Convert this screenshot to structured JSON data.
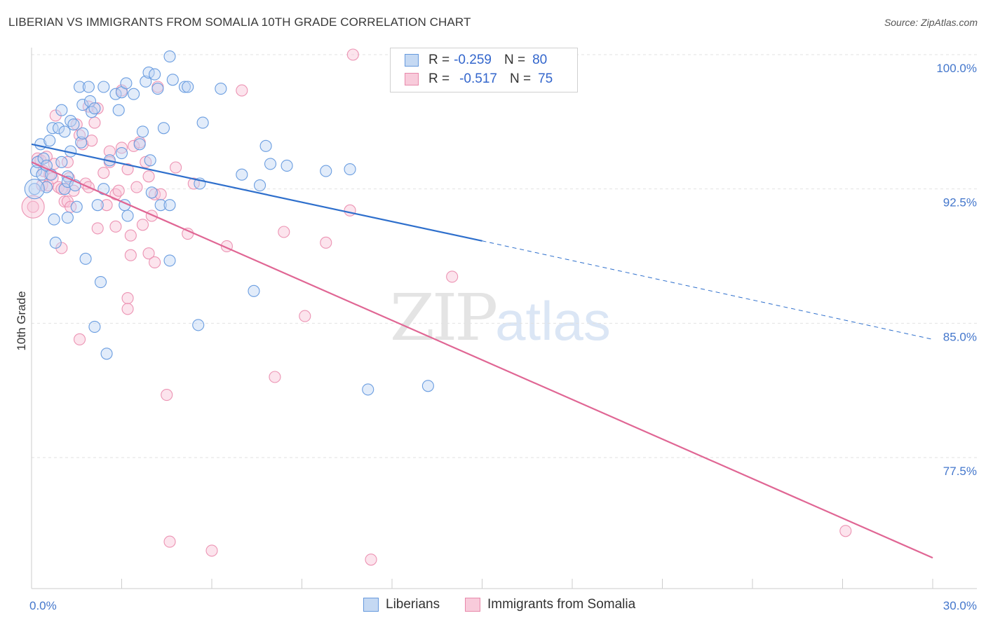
{
  "header": {
    "title": "LIBERIAN VS IMMIGRANTS FROM SOMALIA 10TH GRADE CORRELATION CHART",
    "source": "Source: ZipAtlas.com"
  },
  "watermark": {
    "zip": "ZIP",
    "atlas": "atlas"
  },
  "legend": {
    "rows": [
      {
        "r_label": "R =",
        "r_value": "-0.259",
        "n_label": "N =",
        "n_value": "80",
        "color": "#6699dd",
        "fill": "#c5d9f3"
      },
      {
        "r_label": "R =",
        "r_value": "-0.517",
        "n_label": "N =",
        "n_value": "75",
        "color": "#e889ab",
        "fill": "#f8cbdb"
      }
    ]
  },
  "bottom_legend": {
    "series1": "Liberians",
    "series2": "Immigrants from Somalia"
  },
  "colors": {
    "blue": "#6a9de0",
    "blue_line": "#2e6fcc",
    "pink": "#ec93b3",
    "pink_line": "#e06694",
    "tick": "#4477cc"
  },
  "chart_data": {
    "type": "scatter",
    "title": "LIBERIAN VS IMMIGRANTS FROM SOMALIA 10TH GRADE CORRELATION CHART",
    "ylabel": "10th Grade",
    "xlabel": "",
    "xlim": [
      0,
      30
    ],
    "ylim": [
      71.5,
      101
    ],
    "x_ticks": [
      0,
      30
    ],
    "x_tick_labels": [
      "0.0%",
      "30.0%"
    ],
    "y_ticks": [
      100,
      92.5,
      85,
      77.5
    ],
    "y_tick_labels": [
      "100.0%",
      "92.5%",
      "85.0%",
      "77.5%"
    ],
    "grid": true,
    "legend_position": "top-center",
    "series": [
      {
        "name": "Liberians",
        "r": -0.259,
        "n": 80,
        "trend": {
          "x0": 0,
          "y0": 95.0,
          "x1": 15,
          "y1": 89.6,
          "dashed_to_x": 30,
          "dashed_to_y": 84.1
        },
        "points": [
          [
            0.1,
            92.5
          ],
          [
            0.15,
            93.5
          ],
          [
            0.2,
            94.0
          ],
          [
            0.3,
            95.0
          ],
          [
            0.35,
            93.3
          ],
          [
            0.4,
            94.2
          ],
          [
            0.5,
            93.8
          ],
          [
            0.5,
            92.6
          ],
          [
            0.6,
            95.2
          ],
          [
            0.65,
            93.3
          ],
          [
            0.7,
            95.9
          ],
          [
            0.75,
            90.8
          ],
          [
            0.8,
            89.5
          ],
          [
            0.9,
            95.9
          ],
          [
            1.0,
            96.9
          ],
          [
            1.0,
            94.0
          ],
          [
            1.1,
            92.5
          ],
          [
            1.1,
            95.7
          ],
          [
            1.2,
            90.9
          ],
          [
            1.2,
            93.2
          ],
          [
            1.2,
            92.9
          ],
          [
            1.3,
            94.6
          ],
          [
            1.3,
            96.3
          ],
          [
            1.4,
            96.1
          ],
          [
            1.45,
            92.7
          ],
          [
            1.5,
            91.5
          ],
          [
            1.6,
            98.2
          ],
          [
            1.65,
            95.1
          ],
          [
            1.7,
            95.6
          ],
          [
            1.7,
            97.2
          ],
          [
            1.8,
            88.6
          ],
          [
            1.9,
            98.2
          ],
          [
            1.95,
            97.4
          ],
          [
            2.0,
            96.8
          ],
          [
            2.1,
            97.0
          ],
          [
            2.2,
            91.6
          ],
          [
            2.3,
            87.3
          ],
          [
            2.4,
            92.5
          ],
          [
            2.4,
            98.2
          ],
          [
            2.5,
            83.3
          ],
          [
            2.1,
            84.8
          ],
          [
            2.6,
            94.1
          ],
          [
            2.8,
            97.8
          ],
          [
            2.9,
            96.9
          ],
          [
            3.0,
            97.9
          ],
          [
            3.0,
            94.5
          ],
          [
            3.1,
            91.6
          ],
          [
            3.15,
            98.4
          ],
          [
            3.2,
            91.0
          ],
          [
            3.4,
            97.8
          ],
          [
            3.6,
            95.0
          ],
          [
            3.7,
            95.7
          ],
          [
            3.8,
            98.5
          ],
          [
            3.9,
            99.0
          ],
          [
            3.95,
            94.1
          ],
          [
            4.0,
            92.3
          ],
          [
            4.1,
            98.9
          ],
          [
            4.2,
            98.1
          ],
          [
            4.3,
            91.6
          ],
          [
            4.4,
            95.9
          ],
          [
            4.6,
            99.9
          ],
          [
            4.6,
            91.6
          ],
          [
            4.7,
            98.6
          ],
          [
            4.6,
            88.5
          ],
          [
            5.1,
            98.2
          ],
          [
            5.2,
            98.2
          ],
          [
            5.6,
            92.8
          ],
          [
            5.7,
            96.2
          ],
          [
            5.55,
            84.9
          ],
          [
            6.3,
            98.1
          ],
          [
            7.0,
            93.3
          ],
          [
            7.4,
            86.8
          ],
          [
            7.6,
            92.7
          ],
          [
            7.8,
            94.9
          ],
          [
            7.95,
            93.9
          ],
          [
            8.5,
            93.8
          ],
          [
            9.8,
            93.5
          ],
          [
            10.6,
            93.6
          ],
          [
            11.2,
            81.3
          ],
          [
            13.2,
            81.5
          ]
        ]
      },
      {
        "name": "Immigrants from Somalia",
        "r": -0.517,
        "n": 75,
        "trend": {
          "x0": 0,
          "y0": 94.0,
          "x1": 30,
          "y1": 71.9
        },
        "points": [
          [
            0.05,
            91.5
          ],
          [
            0.2,
            94.2
          ],
          [
            0.3,
            94.1
          ],
          [
            0.35,
            92.7
          ],
          [
            0.4,
            93.5
          ],
          [
            0.5,
            94.3
          ],
          [
            0.55,
            92.7
          ],
          [
            0.6,
            93.3
          ],
          [
            0.7,
            93.1
          ],
          [
            0.75,
            93.9
          ],
          [
            0.8,
            96.6
          ],
          [
            0.9,
            92.6
          ],
          [
            1.0,
            89.2
          ],
          [
            1.0,
            92.5
          ],
          [
            1.1,
            91.8
          ],
          [
            1.2,
            94.0
          ],
          [
            1.2,
            91.8
          ],
          [
            1.25,
            93.1
          ],
          [
            1.3,
            91.5
          ],
          [
            1.4,
            92.4
          ],
          [
            1.5,
            96.1
          ],
          [
            1.6,
            95.5
          ],
          [
            1.6,
            84.1
          ],
          [
            1.7,
            95.0
          ],
          [
            1.8,
            92.8
          ],
          [
            1.9,
            97.1
          ],
          [
            1.9,
            92.6
          ],
          [
            2.0,
            95.2
          ],
          [
            2.1,
            96.2
          ],
          [
            2.2,
            90.3
          ],
          [
            2.2,
            97.0
          ],
          [
            2.4,
            93.4
          ],
          [
            2.5,
            91.6
          ],
          [
            2.6,
            94.6
          ],
          [
            2.6,
            94.0
          ],
          [
            2.8,
            92.2
          ],
          [
            2.8,
            90.4
          ],
          [
            2.9,
            92.4
          ],
          [
            3.0,
            94.8
          ],
          [
            3.0,
            98.0
          ],
          [
            3.2,
            93.6
          ],
          [
            3.2,
            86.4
          ],
          [
            3.2,
            85.8
          ],
          [
            3.3,
            88.8
          ],
          [
            3.3,
            89.9
          ],
          [
            3.4,
            94.9
          ],
          [
            3.5,
            92.6
          ],
          [
            3.6,
            95.1
          ],
          [
            3.7,
            90.5
          ],
          [
            3.8,
            94.0
          ],
          [
            3.9,
            88.9
          ],
          [
            3.9,
            93.2
          ],
          [
            4.0,
            91.0
          ],
          [
            4.1,
            92.2
          ],
          [
            4.1,
            88.4
          ],
          [
            4.2,
            98.2
          ],
          [
            4.3,
            92.2
          ],
          [
            4.5,
            81.0
          ],
          [
            4.6,
            72.8
          ],
          [
            4.8,
            93.7
          ],
          [
            5.2,
            90.0
          ],
          [
            5.4,
            92.8
          ],
          [
            6.0,
            72.3
          ],
          [
            6.5,
            89.3
          ],
          [
            7.0,
            98.0
          ],
          [
            8.1,
            82.0
          ],
          [
            8.4,
            90.1
          ],
          [
            9.1,
            85.4
          ],
          [
            9.8,
            89.5
          ],
          [
            10.6,
            91.3
          ],
          [
            10.7,
            100.0
          ],
          [
            11.3,
            71.8
          ],
          [
            14.0,
            87.6
          ],
          [
            27.1,
            73.4
          ],
          [
            1.1,
            92.5
          ]
        ]
      }
    ]
  }
}
